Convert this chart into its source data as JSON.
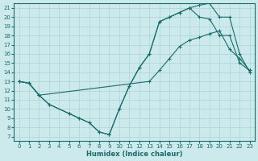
{
  "xlabel": "Humidex (Indice chaleur)",
  "background_color": "#cce9ec",
  "grid_color": "#aad4d8",
  "line_color": "#1a6b6b",
  "xlim": [
    -0.5,
    23.5
  ],
  "ylim": [
    6.5,
    21.5
  ],
  "xticks": [
    0,
    1,
    2,
    3,
    4,
    5,
    6,
    7,
    8,
    9,
    10,
    11,
    12,
    13,
    14,
    15,
    16,
    17,
    18,
    19,
    20,
    21,
    22,
    23
  ],
  "yticks": [
    7,
    8,
    9,
    10,
    11,
    12,
    13,
    14,
    15,
    16,
    17,
    18,
    19,
    20,
    21
  ],
  "curve1_x": [
    0,
    1,
    2,
    3,
    5,
    6,
    7,
    8,
    9,
    10,
    11,
    12,
    13,
    14,
    15,
    16,
    17,
    18,
    19,
    20,
    21,
    22,
    23
  ],
  "curve1_y": [
    13,
    12.8,
    11.5,
    10.5,
    9.5,
    9.0,
    8.5,
    7.5,
    7.2,
    10.0,
    12.5,
    14.5,
    16.0,
    19.5,
    20.0,
    20.5,
    21.0,
    21.3,
    21.5,
    20.0,
    20.0,
    16.0,
    14.0
  ],
  "curve2_x": [
    0,
    1,
    2,
    3,
    5,
    6,
    7,
    8,
    9,
    10,
    11,
    12,
    13,
    14,
    15,
    16,
    17,
    18,
    19,
    20,
    21,
    22,
    23
  ],
  "curve2_y": [
    13,
    12.8,
    11.5,
    10.5,
    9.5,
    9.0,
    8.5,
    7.5,
    7.2,
    10.0,
    12.5,
    14.5,
    16.0,
    19.5,
    20.0,
    20.5,
    21.0,
    20.0,
    19.8,
    18.0,
    18.0,
    15.0,
    14.2
  ],
  "curve3_x": [
    0,
    1,
    2,
    13,
    14,
    15,
    16,
    17,
    18,
    19,
    20,
    21,
    22,
    23
  ],
  "curve3_y": [
    13,
    12.8,
    11.5,
    13.0,
    14.2,
    15.5,
    16.8,
    17.5,
    17.8,
    18.2,
    18.5,
    16.5,
    15.5,
    14.2
  ]
}
